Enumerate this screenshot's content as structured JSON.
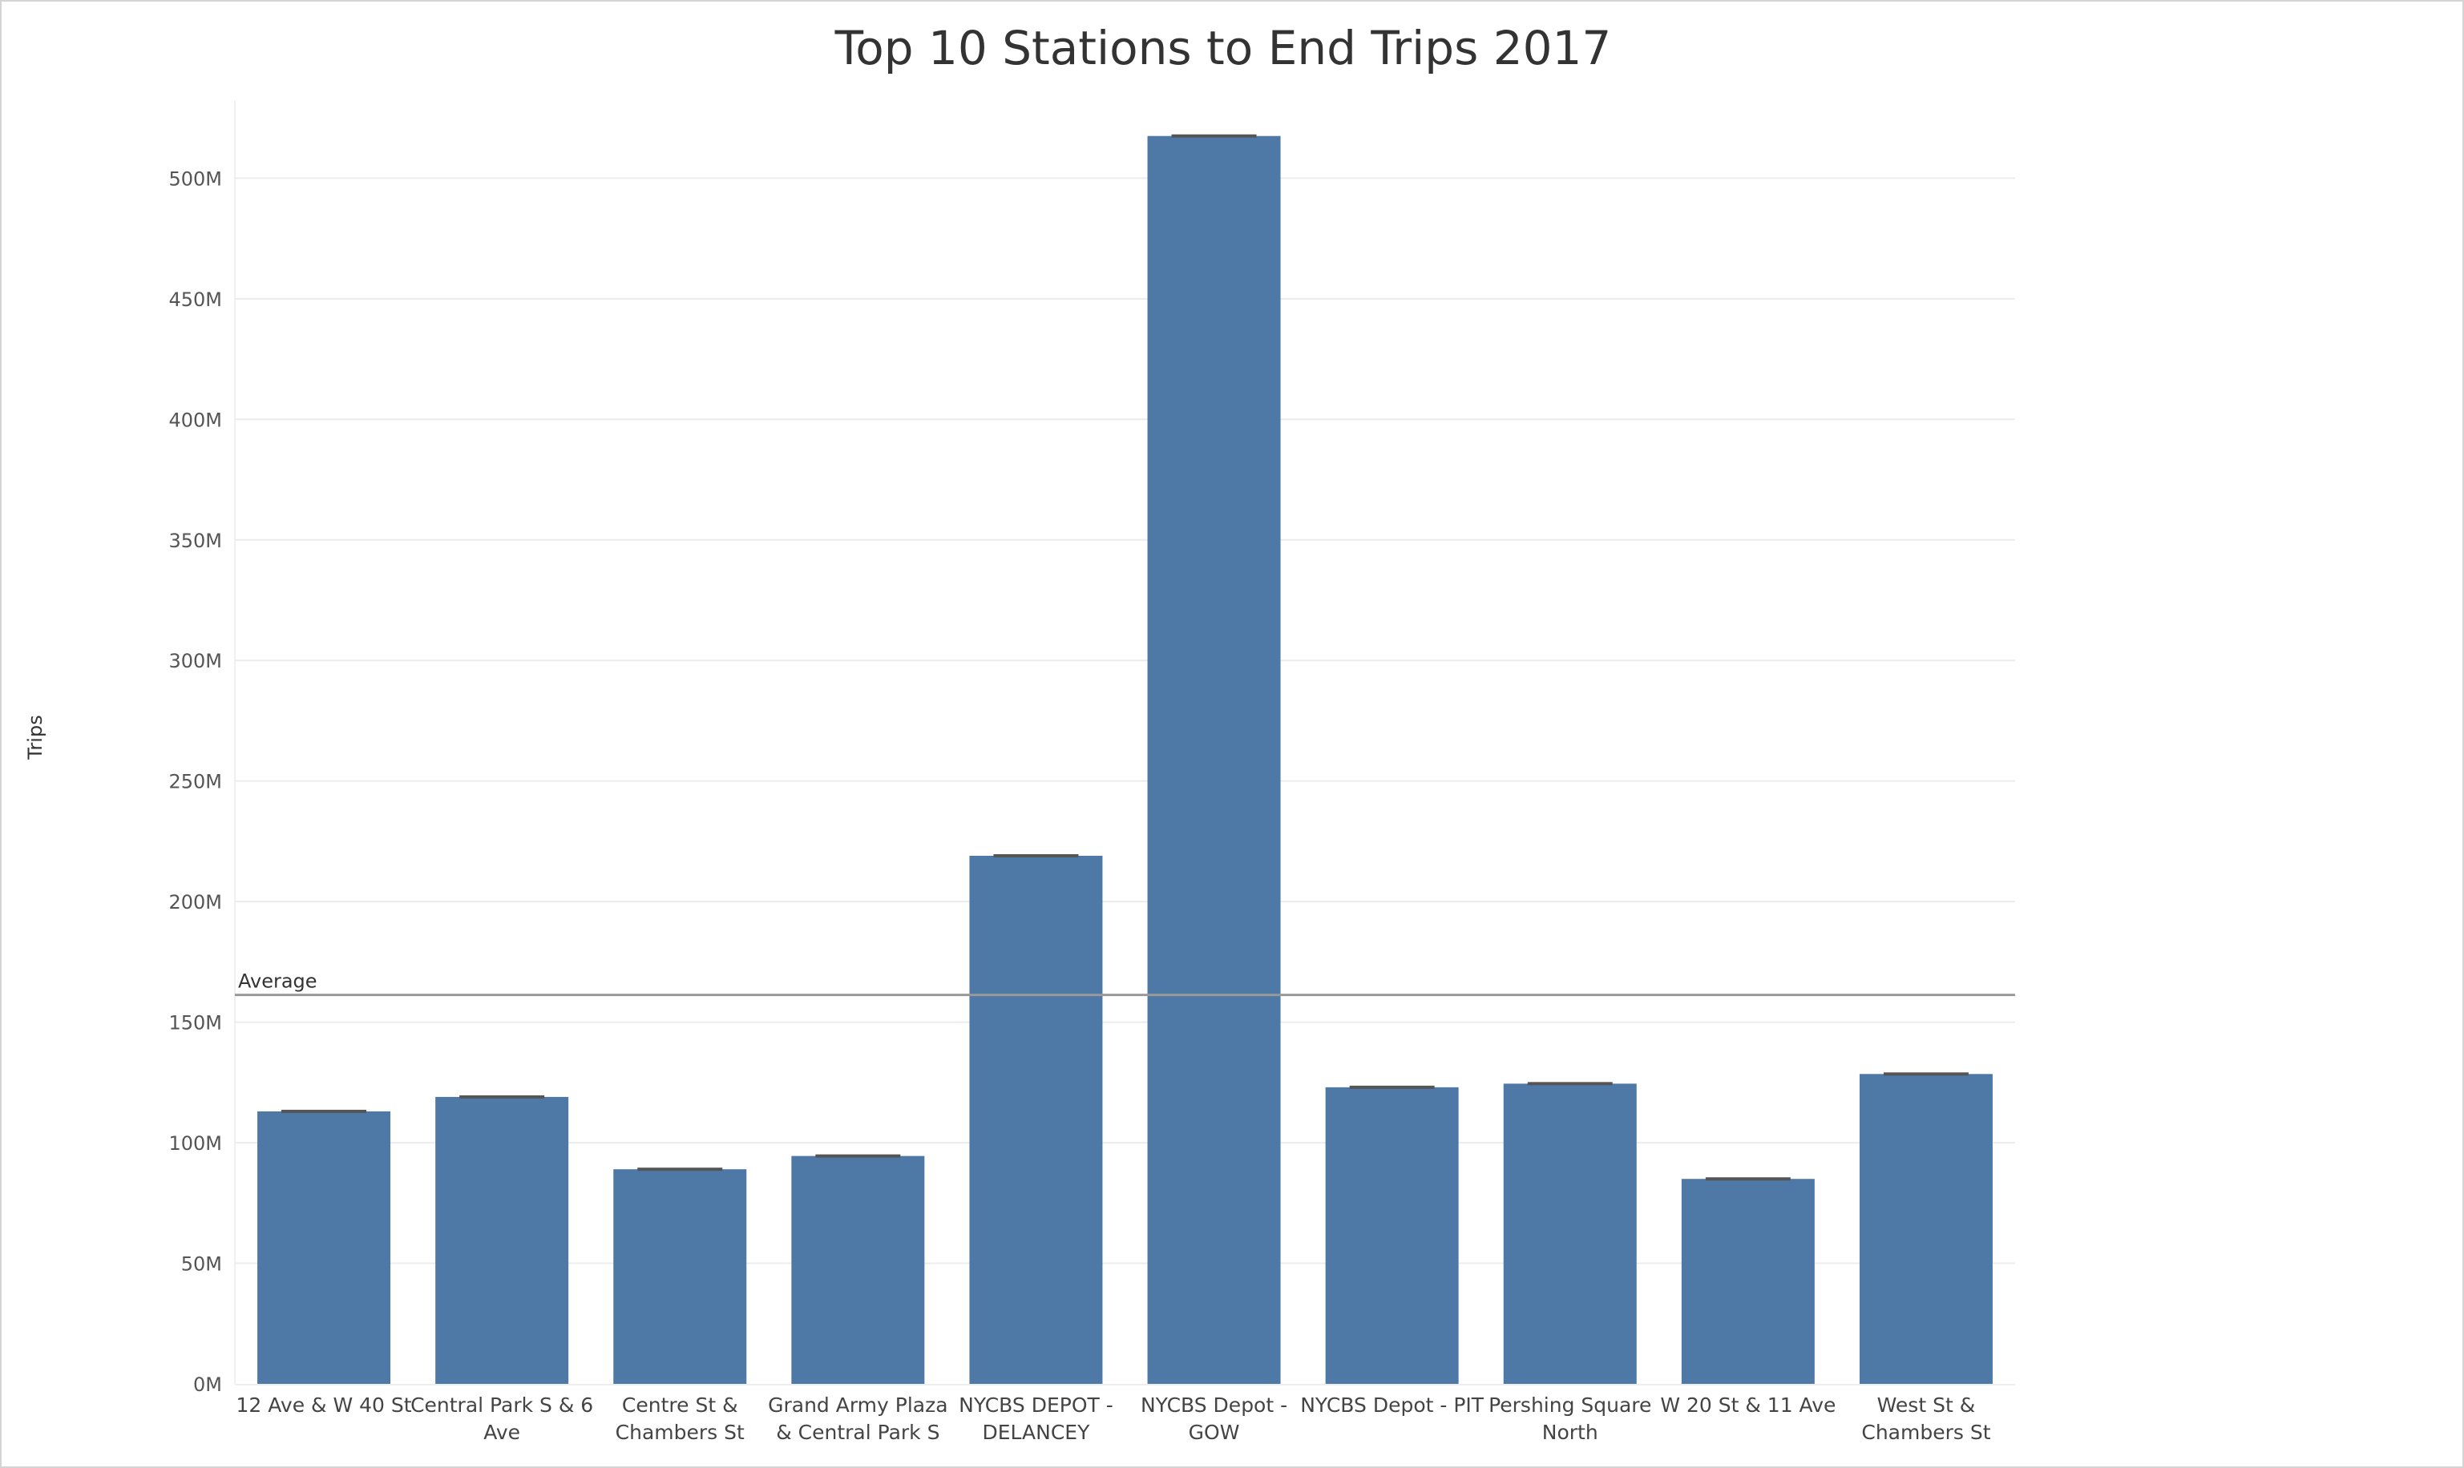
{
  "chart_data": {
    "type": "bar",
    "title": "Top 10 Stations to End Trips 2017",
    "xlabel": "",
    "ylabel": "Trips",
    "categories": [
      [
        "12 Ave & W 40 St"
      ],
      [
        "Central Park S & 6",
        "Ave"
      ],
      [
        "Centre St &",
        "Chambers St"
      ],
      [
        "Grand Army Plaza",
        "& Central Park S"
      ],
      [
        "NYCBS DEPOT -",
        "DELANCEY"
      ],
      [
        "NYCBS Depot -",
        "GOW"
      ],
      [
        "NYCBS Depot - PIT"
      ],
      [
        "Pershing Square",
        "North"
      ],
      [
        "W 20 St & 11 Ave"
      ],
      [
        "West St &",
        "Chambers St"
      ]
    ],
    "values": [
      113000000,
      119000000,
      89000000,
      94500000,
      219000000,
      517500000,
      123000000,
      124500000,
      85000000,
      128500000
    ],
    "ylim": [
      0,
      540000000
    ],
    "yticks": [
      0,
      50000000,
      100000000,
      150000000,
      200000000,
      250000000,
      300000000,
      350000000,
      400000000,
      450000000,
      500000000
    ],
    "ytick_labels": [
      "0M",
      "50M",
      "100M",
      "150M",
      "200M",
      "250M",
      "300M",
      "350M",
      "400M",
      "450M",
      "500M"
    ],
    "reference_line": {
      "label": "Average",
      "value": 161300000
    },
    "grid": true,
    "legend": "none",
    "colors": {
      "bar": "#4e79a7",
      "bar_cap": "#555555",
      "grid": "#ececec",
      "reference_line": "#999999",
      "text": "#333333"
    }
  }
}
